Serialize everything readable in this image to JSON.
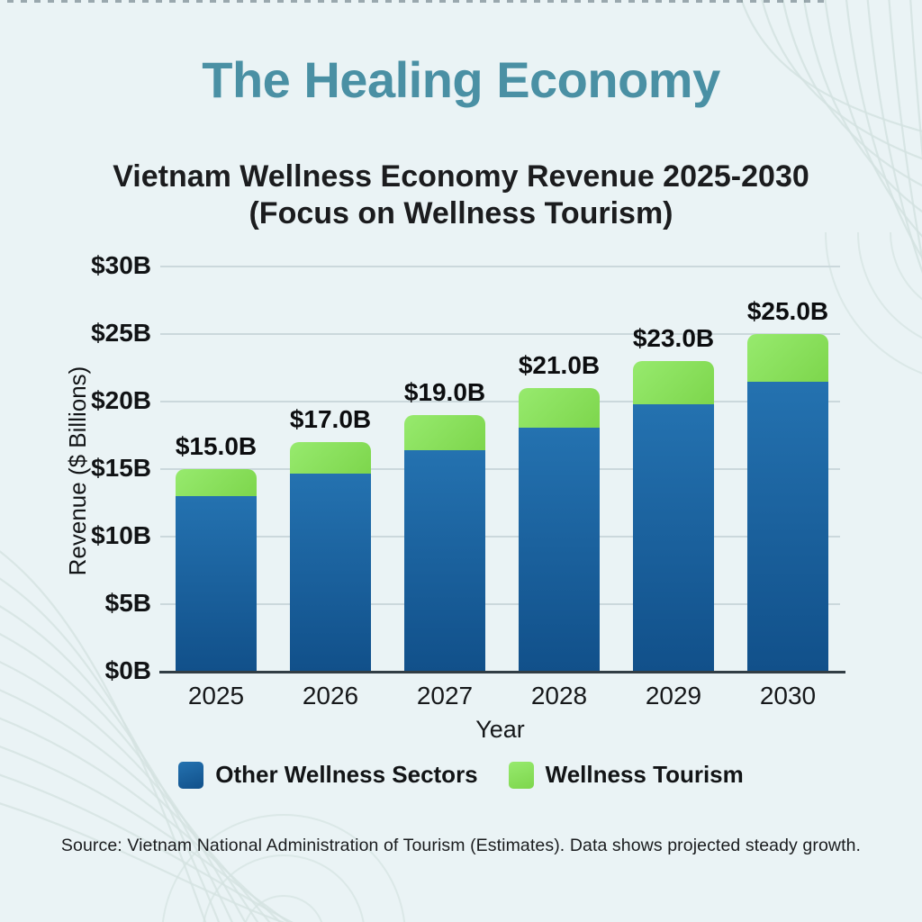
{
  "page": {
    "title": "The Healing Economy",
    "subtitle_line1": "Vietnam Wellness Economy Revenue 2025-2030",
    "subtitle_line2": "(Focus on Wellness Tourism)",
    "source": "Source: Vietnam National Administration of Tourism (Estimates). Data shows projected steady growth.",
    "colors": {
      "background": "#eaf3f5",
      "title": "#4a90a4",
      "contour_line": "#d4e2e1",
      "gridline": "#cbd8dc",
      "axis": "#313d44"
    }
  },
  "chart_data": {
    "type": "bar",
    "stacked": true,
    "title": "Vietnam Wellness Economy Revenue 2025-2030 (Focus on Wellness Tourism)",
    "categories": [
      "2025",
      "2026",
      "2027",
      "2028",
      "2029",
      "2030"
    ],
    "series": [
      {
        "name": "Other Wellness Sectors",
        "color": "#1c609c",
        "gradient_top": "#2472b0",
        "gradient_bottom": "#11508a",
        "values": [
          13.0,
          14.7,
          16.4,
          18.1,
          19.8,
          21.5
        ]
      },
      {
        "name": "Wellness Tourism",
        "color": "#8ce05f",
        "gradient_top": "#97ea6e",
        "gradient_bottom": "#7dd64c",
        "values": [
          2.0,
          2.3,
          2.6,
          2.9,
          3.2,
          3.5
        ]
      }
    ],
    "totals": [
      15.0,
      17.0,
      19.0,
      21.0,
      23.0,
      25.0
    ],
    "total_labels": [
      "$15.0B",
      "$17.0B",
      "$19.0B",
      "$21.0B",
      "$23.0B",
      "$25.0B"
    ],
    "xlabel": "Year",
    "ylabel": "Revenue ($ Billions)",
    "ylim": [
      0,
      30
    ],
    "ytick_step": 5,
    "ytick_labels": [
      "$0B",
      "$5B",
      "$10B",
      "$15B",
      "$20B",
      "$25B",
      "$30B"
    ],
    "grid": true,
    "legend_position": "bottom"
  }
}
